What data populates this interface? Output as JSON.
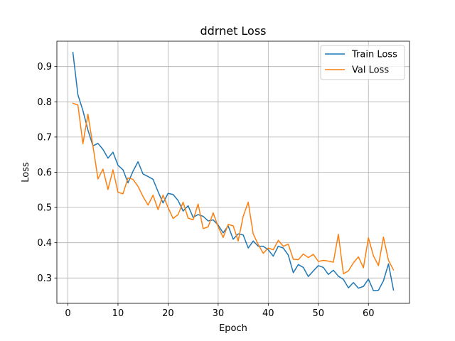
{
  "chart_data": {
    "type": "line",
    "title": "ddrnet Loss",
    "xlabel": "Epoch",
    "ylabel": "Loss",
    "xlim": [
      -2.2,
      68.2
    ],
    "ylim": [
      0.228,
      0.972
    ],
    "xticks": [
      0,
      10,
      20,
      30,
      40,
      50,
      60
    ],
    "yticks": [
      0.3,
      0.4,
      0.5,
      0.6,
      0.7,
      0.8,
      0.9
    ],
    "grid": true,
    "legend_position": "top-right",
    "x": [
      1,
      2,
      3,
      4,
      5,
      6,
      7,
      8,
      9,
      10,
      11,
      12,
      13,
      14,
      15,
      16,
      17,
      18,
      19,
      20,
      21,
      22,
      23,
      24,
      25,
      26,
      27,
      28,
      29,
      30,
      31,
      32,
      33,
      34,
      35,
      36,
      37,
      38,
      39,
      40,
      41,
      42,
      43,
      44,
      45,
      46,
      47,
      48,
      49,
      50,
      51,
      52,
      53,
      54,
      55,
      56,
      57,
      58,
      59,
      60,
      61,
      62,
      63,
      64,
      65
    ],
    "series": [
      {
        "name": "Train Loss",
        "color": "#1f77b4",
        "values": [
          0.94,
          0.82,
          0.775,
          0.72,
          0.675,
          0.682,
          0.665,
          0.64,
          0.657,
          0.62,
          0.607,
          0.57,
          0.603,
          0.63,
          0.595,
          0.588,
          0.58,
          0.545,
          0.513,
          0.54,
          0.537,
          0.52,
          0.49,
          0.505,
          0.472,
          0.48,
          0.475,
          0.462,
          0.465,
          0.45,
          0.428,
          0.448,
          0.41,
          0.425,
          0.422,
          0.385,
          0.405,
          0.39,
          0.39,
          0.38,
          0.362,
          0.39,
          0.385,
          0.365,
          0.315,
          0.338,
          0.33,
          0.304,
          0.32,
          0.335,
          0.33,
          0.31,
          0.322,
          0.305,
          0.296,
          0.272,
          0.287,
          0.271,
          0.276,
          0.297,
          0.264,
          0.265,
          0.292,
          0.34,
          0.266
        ]
      },
      {
        "name": "Val Loss",
        "color": "#ff7f0e",
        "values": [
          0.796,
          0.791,
          0.681,
          0.765,
          0.675,
          0.581,
          0.609,
          0.551,
          0.607,
          0.543,
          0.539,
          0.584,
          0.58,
          0.56,
          0.531,
          0.507,
          0.535,
          0.494,
          0.535,
          0.5,
          0.469,
          0.48,
          0.515,
          0.47,
          0.465,
          0.51,
          0.44,
          0.445,
          0.485,
          0.445,
          0.415,
          0.452,
          0.448,
          0.405,
          0.475,
          0.515,
          0.425,
          0.395,
          0.37,
          0.385,
          0.38,
          0.407,
          0.39,
          0.396,
          0.353,
          0.352,
          0.368,
          0.358,
          0.367,
          0.347,
          0.35,
          0.348,
          0.345,
          0.424,
          0.312,
          0.32,
          0.343,
          0.36,
          0.329,
          0.414,
          0.363,
          0.335,
          0.416,
          0.35,
          0.323
        ]
      }
    ]
  }
}
